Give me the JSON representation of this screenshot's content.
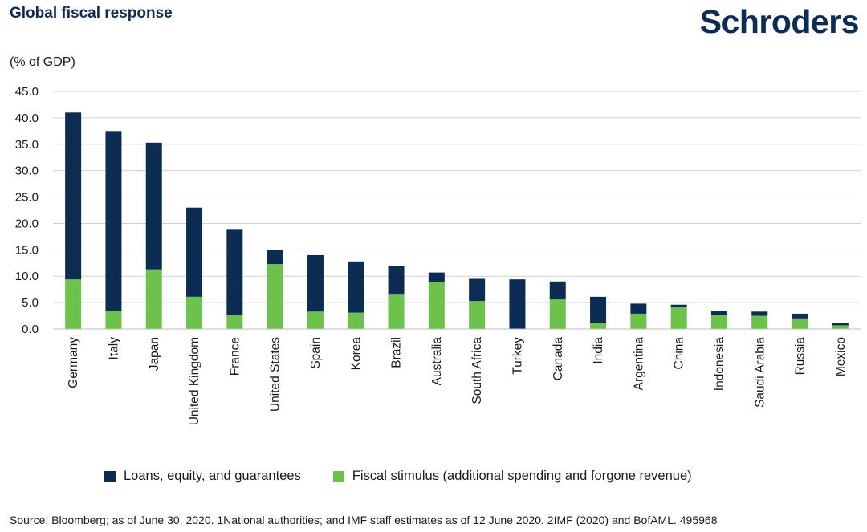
{
  "header": {
    "title": "Global fiscal response",
    "brand": "Schroders"
  },
  "colors": {
    "loans": "#0d2c54",
    "fiscal": "#6cc24a",
    "grid": "#d0d0d0",
    "text": "#1a1a1a"
  },
  "chart_data": {
    "type": "bar",
    "stacked": true,
    "unit_label": "(% of GDP)",
    "ylim": [
      0,
      45
    ],
    "yticks": [
      "0.0",
      "5.0",
      "10.0",
      "15.0",
      "20.0",
      "25.0",
      "30.0",
      "35.0",
      "40.0",
      "45.0"
    ],
    "grid": true,
    "legend_position": "bottom",
    "categories": [
      "Germany",
      "Italy",
      "Japan",
      "United Kingdom",
      "France",
      "United States",
      "Spain",
      "Korea",
      "Brazil",
      "Australia",
      "South Africa",
      "Turkey",
      "Canada",
      "India",
      "Argentina",
      "China",
      "Indonesia",
      "Saudi Arabia",
      "Russia",
      "Mexico"
    ],
    "series": [
      {
        "name": "Fiscal stimulus (additional spending and forgone revenue)",
        "color_key": "fiscal",
        "values": [
          9.4,
          3.5,
          11.3,
          6.1,
          2.6,
          12.3,
          3.3,
          3.1,
          6.5,
          8.9,
          5.3,
          0.0,
          5.6,
          1.1,
          2.9,
          4.1,
          2.6,
          2.5,
          2.0,
          0.7
        ]
      },
      {
        "name": "Loans, equity, and guarantees",
        "color_key": "loans",
        "values": [
          31.6,
          34.0,
          24.0,
          16.9,
          16.2,
          2.6,
          10.7,
          9.7,
          5.4,
          1.8,
          4.2,
          9.4,
          3.4,
          5.0,
          1.9,
          0.5,
          0.9,
          0.8,
          0.9,
          0.4
        ]
      }
    ]
  },
  "legend": {
    "loans_label": "Loans, equity, and guarantees",
    "fiscal_label": "Fiscal stimulus (additional spending and forgone revenue)"
  },
  "footer": {
    "source": "Source: Bloomberg; as of June 30, 2020. 1National authorities; and IMF staff estimates as of 12 June 2020. 2IMF (2020) and BofAML. 495968"
  }
}
